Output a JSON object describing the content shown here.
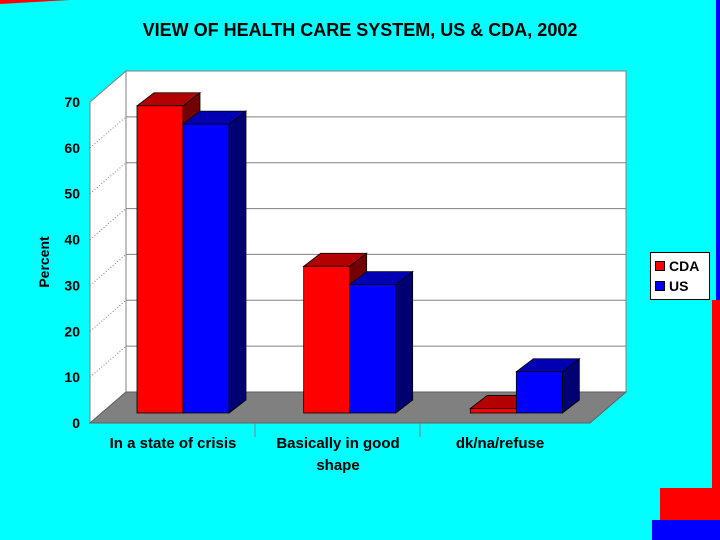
{
  "colors": {
    "background": "#00ffff",
    "cda": "#ff0000",
    "us": "#0000ff",
    "floor": "#808080"
  },
  "chart_data": {
    "type": "bar",
    "title": "VIEW OF HEALTH CARE SYSTEM, US & CDA, 2002",
    "xlabel": "",
    "ylabel": "Percent",
    "ylim": [
      0,
      70
    ],
    "yticks": [
      0,
      10,
      20,
      30,
      40,
      50,
      60,
      70
    ],
    "grid": true,
    "legend_position": "right",
    "categories": [
      "In a state of crisis",
      "Basically in good shape",
      "dk/na/refuse"
    ],
    "series": [
      {
        "name": "CDA",
        "values": [
          67,
          32,
          1
        ],
        "color": "#ff0000"
      },
      {
        "name": "US",
        "values": [
          63,
          28,
          9
        ],
        "color": "#0000ff"
      }
    ]
  }
}
